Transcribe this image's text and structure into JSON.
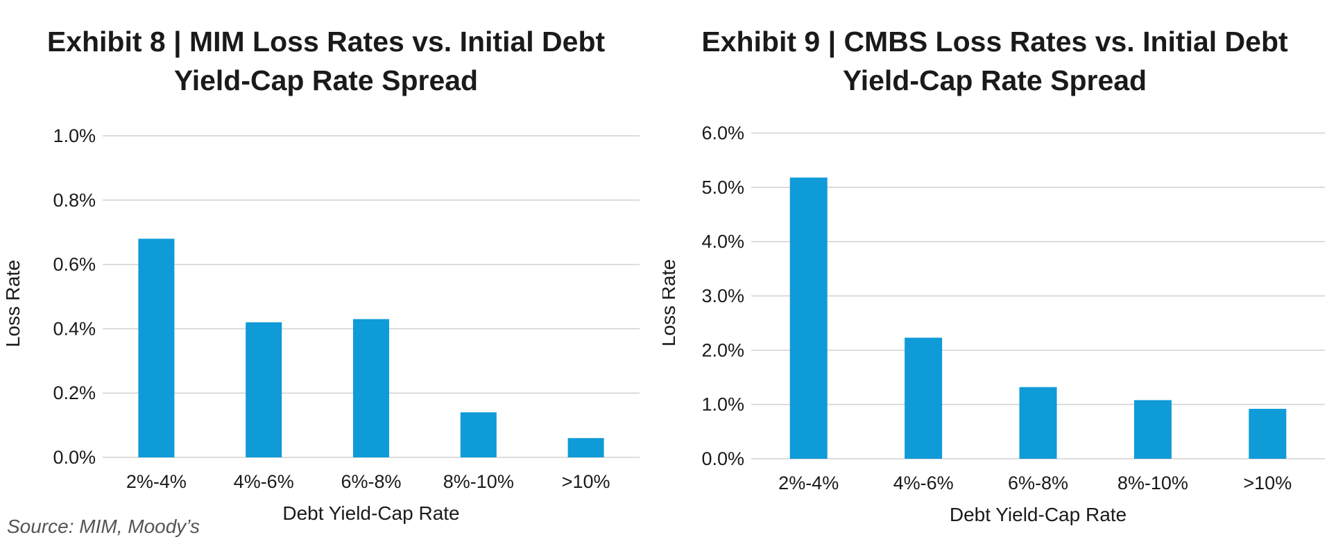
{
  "colors": {
    "bar": "#0f9ad8",
    "grid": "#d0d0d0",
    "text": "#1a1a1a",
    "source": "#555555"
  },
  "source": "Source: MIM, Moody’s",
  "chart_data": [
    {
      "type": "bar",
      "title_line1": "Exhibit 8  |  MIM Loss Rates vs. Initial Debt",
      "title_line2": "Yield-Cap Rate Spread",
      "xlabel": "Debt Yield-Cap Rate",
      "ylabel": "Loss Rate",
      "categories": [
        "2%-4%",
        "4%-6%",
        "6%-8%",
        "8%-10%",
        ">10%"
      ],
      "values": [
        0.68,
        0.42,
        0.43,
        0.14,
        0.06
      ],
      "ylim": [
        0,
        1.0
      ],
      "yticks": [
        0,
        0.2,
        0.4,
        0.6,
        0.8,
        1.0
      ],
      "ytick_labels": [
        "0.0%",
        "0.2%",
        "0.4%",
        "0.6%",
        "0.8%",
        "1.0%"
      ],
      "unit": "%",
      "grid": true
    },
    {
      "type": "bar",
      "title_line1": "Exhibit 9  |  CMBS Loss Rates vs. Initial Debt",
      "title_line2": "Yield-Cap Rate Spread",
      "xlabel": "Debt Yield-Cap Rate",
      "ylabel": "Loss Rate",
      "categories": [
        "2%-4%",
        "4%-6%",
        "6%-8%",
        "8%-10%",
        ">10%"
      ],
      "values": [
        5.18,
        2.23,
        1.32,
        1.08,
        0.92
      ],
      "ylim": [
        0,
        6.0
      ],
      "yticks": [
        0,
        1,
        2,
        3,
        4,
        5,
        6
      ],
      "ytick_labels": [
        "0.0%",
        "1.0%",
        "2.0%",
        "3.0%",
        "4.0%",
        "5.0%",
        "6.0%"
      ],
      "unit": "%",
      "grid": true
    }
  ]
}
